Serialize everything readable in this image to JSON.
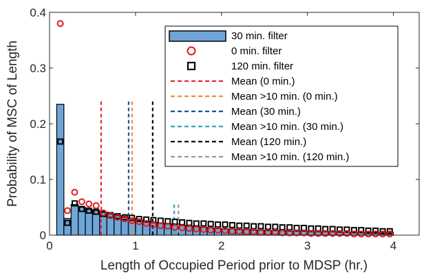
{
  "chart_data": {
    "type": "bar",
    "xlabel": "Length of Occupied Period prior to MDSP (hr.)",
    "ylabel": "Probability of MSC of Length",
    "xlim": [
      0,
      4.3
    ],
    "ylim": [
      0,
      0.4
    ],
    "xticks": [
      0,
      1,
      2,
      3,
      4
    ],
    "xtick_labels": [
      "0",
      "1",
      "2",
      "3",
      "4"
    ],
    "yticks": [
      0,
      0.1,
      0.2,
      0.3,
      0.4
    ],
    "ytick_labels": [
      "0",
      "0.1",
      "0.2",
      "0.3",
      "0.4"
    ],
    "grid": false,
    "legend_position": "top-right",
    "colors": {
      "bar_fill": "#6fa5d7",
      "bar_edge": "#000000",
      "circle": "#e31a1c",
      "square": "#000000",
      "mean0": "#e8262a",
      "mean10_0": "#f28a3c",
      "mean30": "#1f4e9c",
      "mean10_30": "#3a9fc6",
      "mean120": "#000000",
      "mean10_120": "#9a9a9a"
    },
    "bar_width": 0.0833,
    "bars_30min": {
      "name": "30 min. filter",
      "x": [
        0.125,
        0.208,
        0.292,
        0.375,
        0.458,
        0.542,
        0.625,
        0.708,
        0.792,
        0.875,
        0.958,
        1.042,
        1.125,
        1.208,
        1.292,
        1.375,
        1.458,
        1.542,
        1.625,
        1.708,
        1.792,
        1.875,
        1.958,
        2.042,
        2.125,
        2.208,
        2.292,
        2.375,
        2.458,
        2.542,
        2.625,
        2.708,
        2.792,
        2.875,
        2.958,
        3.042,
        3.125,
        3.208,
        3.292,
        3.375,
        3.458,
        3.542,
        3.625,
        3.708,
        3.792,
        3.875,
        3.958
      ],
      "y": [
        0.235,
        0.03,
        0.055,
        0.05,
        0.046,
        0.044,
        0.041,
        0.038,
        0.035,
        0.032,
        0.03,
        0.027,
        0.025,
        0.023,
        0.021,
        0.02,
        0.018,
        0.017,
        0.016,
        0.015,
        0.014,
        0.013,
        0.012,
        0.011,
        0.011,
        0.01,
        0.01,
        0.009,
        0.009,
        0.008,
        0.008,
        0.008,
        0.007,
        0.007,
        0.007,
        0.006,
        0.006,
        0.006,
        0.006,
        0.005,
        0.005,
        0.005,
        0.005,
        0.005,
        0.005,
        0.005,
        0.005
      ]
    },
    "circles_0min": {
      "name": "0 min. filter",
      "x": [
        0.125,
        0.208,
        0.292,
        0.375,
        0.458,
        0.542,
        0.625,
        0.708,
        0.792,
        0.875,
        0.958,
        1.042,
        1.125,
        1.208,
        1.292,
        1.375,
        1.458,
        1.542,
        1.625,
        1.708,
        1.792,
        1.875,
        1.958,
        2.042,
        2.125,
        2.208,
        2.292,
        2.375,
        2.458,
        2.542,
        2.625,
        2.708,
        2.792,
        2.875,
        2.958,
        3.042,
        3.125,
        3.208,
        3.292,
        3.375,
        3.458,
        3.542,
        3.625,
        3.708,
        3.792,
        3.875,
        3.958
      ],
      "y": [
        0.38,
        0.044,
        0.077,
        0.06,
        0.056,
        0.053,
        0.04,
        0.035,
        0.032,
        0.029,
        0.026,
        0.024,
        0.021,
        0.019,
        0.017,
        0.016,
        0.014,
        0.013,
        0.012,
        0.011,
        0.01,
        0.009,
        0.009,
        0.008,
        0.007,
        0.007,
        0.006,
        0.006,
        0.005,
        0.005,
        0.005,
        0.004,
        0.004,
        0.004,
        0.004,
        0.003,
        0.003,
        0.003,
        0.003,
        0.003,
        0.003,
        0.002,
        0.002,
        0.002,
        0.002,
        0.002,
        0.002
      ]
    },
    "squares_120min": {
      "name": "120 min. filter",
      "x": [
        0.125,
        0.208,
        0.292,
        0.375,
        0.458,
        0.542,
        0.625,
        0.708,
        0.792,
        0.875,
        0.958,
        1.042,
        1.125,
        1.208,
        1.292,
        1.375,
        1.458,
        1.542,
        1.625,
        1.708,
        1.792,
        1.875,
        1.958,
        2.042,
        2.125,
        2.208,
        2.292,
        2.375,
        2.458,
        2.542,
        2.625,
        2.708,
        2.792,
        2.875,
        2.958,
        3.042,
        3.125,
        3.208,
        3.292,
        3.375,
        3.458,
        3.542,
        3.625,
        3.708,
        3.792,
        3.875,
        3.958
      ],
      "y": [
        0.168,
        0.022,
        0.057,
        0.047,
        0.044,
        0.042,
        0.038,
        0.036,
        0.034,
        0.032,
        0.031,
        0.029,
        0.028,
        0.027,
        0.026,
        0.025,
        0.024,
        0.023,
        0.022,
        0.021,
        0.021,
        0.02,
        0.019,
        0.019,
        0.018,
        0.017,
        0.017,
        0.016,
        0.016,
        0.015,
        0.015,
        0.014,
        0.014,
        0.013,
        0.013,
        0.012,
        0.012,
        0.011,
        0.011,
        0.01,
        0.01,
        0.009,
        0.009,
        0.008,
        0.008,
        0.007,
        0.007
      ]
    },
    "mean_lines": [
      {
        "name": "Mean (0 min.)",
        "x": 0.6,
        "color_key": "mean0",
        "y_top": 0.24
      },
      {
        "name": "Mean >10 min. (0 min.)",
        "x": 0.96,
        "color_key": "mean10_0",
        "y_top": 0.24
      },
      {
        "name": "Mean (30 min.)",
        "x": 0.92,
        "color_key": "mean30",
        "y_top": 0.24
      },
      {
        "name": "Mean >10 min. (30 min.)",
        "x": 1.45,
        "color_key": "mean10_30",
        "y_top": 0.055
      },
      {
        "name": "Mean (120 min.)",
        "x": 1.2,
        "color_key": "mean120",
        "y_top": 0.24
      },
      {
        "name": "Mean >10 min. (120 min.)",
        "x": 1.5,
        "color_key": "mean10_120",
        "y_top": 0.055
      }
    ],
    "legend": [
      {
        "label": "30 min. filter",
        "kind": "bar",
        "color_key": "bar_fill"
      },
      {
        "label": "0 min. filter",
        "kind": "circle",
        "color_key": "circle"
      },
      {
        "label": "120 min. filter",
        "kind": "square",
        "color_key": "square"
      },
      {
        "label": "Mean (0 min.)",
        "kind": "dash",
        "color_key": "mean0"
      },
      {
        "label": "Mean >10 min. (0 min.)",
        "kind": "dash",
        "color_key": "mean10_0"
      },
      {
        "label": "Mean (30 min.)",
        "kind": "dash",
        "color_key": "mean30"
      },
      {
        "label": "Mean >10 min. (30 min.)",
        "kind": "dash",
        "color_key": "mean10_30"
      },
      {
        "label": "Mean (120 min.)",
        "kind": "dash",
        "color_key": "mean120"
      },
      {
        "label": "Mean >10 min. (120 min.)",
        "kind": "dash",
        "color_key": "mean10_120"
      }
    ]
  }
}
